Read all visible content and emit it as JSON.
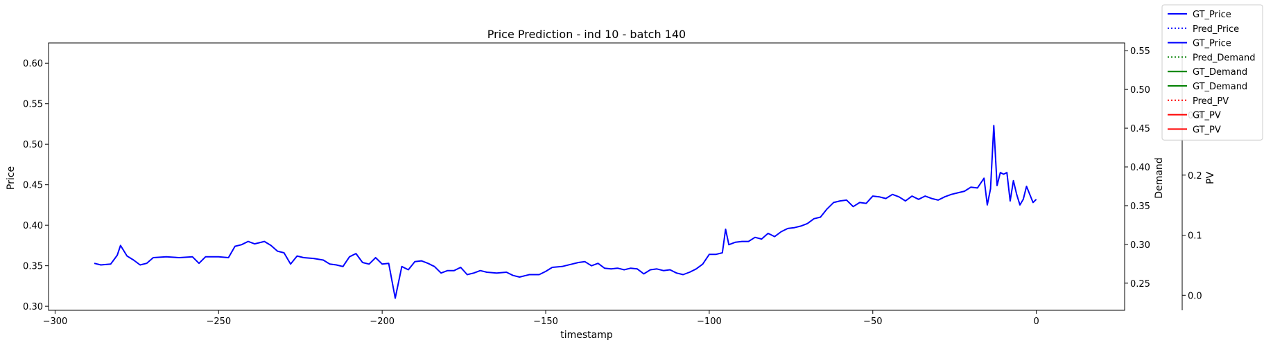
{
  "chart_data": {
    "type": "line",
    "title": "Price Prediction - ind 10 - batch 140",
    "xlabel": "timestamp",
    "xlim": [
      -302,
      27
    ],
    "xticks": [
      -300,
      -250,
      -200,
      -150,
      -100,
      -50,
      0
    ],
    "axes": {
      "price": {
        "label": "Price",
        "color": "#0000ff",
        "ylim": [
          0.295,
          0.625
        ],
        "ticks": [
          0.3,
          0.35,
          0.4,
          0.45,
          0.5,
          0.55,
          0.6
        ],
        "tick_labels": [
          "0.30",
          "0.35",
          "0.40",
          "0.45",
          "0.50",
          "0.55",
          "0.60"
        ]
      },
      "demand": {
        "label": "Demand",
        "color": "#008000",
        "ylim": [
          0.215,
          0.56
        ],
        "ticks": [
          0.25,
          0.3,
          0.35,
          0.4,
          0.45,
          0.5,
          0.55
        ],
        "tick_labels": [
          "0.25",
          "0.30",
          "0.35",
          "0.40",
          "0.45",
          "0.50",
          "0.55"
        ]
      },
      "pv": {
        "label": "PV",
        "color": "#ff0000",
        "ylim": [
          -0.025,
          0.42
        ],
        "ticks": [
          0.0,
          0.1,
          0.2,
          0.3
        ],
        "tick_labels": [
          "0.0",
          "0.1",
          "0.2",
          "0.3"
        ]
      }
    },
    "legend": {
      "placement": "top-right",
      "entries": [
        {
          "label": "GT_Price",
          "color": "#0000ff",
          "style": "solid"
        },
        {
          "label": "Pred_Price",
          "color": "#0000ff",
          "style": "dotted"
        },
        {
          "label": "GT_Price",
          "color": "#0000ff",
          "style": "solid"
        },
        {
          "label": "Pred_Demand",
          "color": "#008000",
          "style": "dotted"
        },
        {
          "label": "GT_Demand",
          "color": "#008000",
          "style": "solid"
        },
        {
          "label": "GT_Demand",
          "color": "#008000",
          "style": "solid"
        },
        {
          "label": "Pred_PV",
          "color": "#ff0000",
          "style": "dotted"
        },
        {
          "label": "GT_PV",
          "color": "#ff0000",
          "style": "solid"
        },
        {
          "label": "GT_PV",
          "color": "#ff0000",
          "style": "solid"
        }
      ]
    },
    "series": [
      {
        "name": "GT_Price",
        "axis": "price",
        "color": "#0000ff",
        "style": "solid",
        "points": [
          [
            -288,
            0.353
          ],
          [
            -286,
            0.351
          ],
          [
            -283,
            0.352
          ],
          [
            -281,
            0.363
          ],
          [
            -280,
            0.375
          ],
          [
            -278,
            0.362
          ],
          [
            -276,
            0.357
          ],
          [
            -274,
            0.351
          ],
          [
            -272,
            0.353
          ],
          [
            -270,
            0.36
          ],
          [
            -266,
            0.361
          ],
          [
            -262,
            0.36
          ],
          [
            -258,
            0.361
          ],
          [
            -256,
            0.353
          ],
          [
            -254,
            0.361
          ],
          [
            -250,
            0.361
          ],
          [
            -247,
            0.36
          ],
          [
            -245,
            0.374
          ],
          [
            -243,
            0.376
          ],
          [
            -241,
            0.38
          ],
          [
            -239,
            0.377
          ],
          [
            -236,
            0.38
          ],
          [
            -234,
            0.375
          ],
          [
            -232,
            0.368
          ],
          [
            -230,
            0.366
          ],
          [
            -228,
            0.352
          ],
          [
            -226,
            0.362
          ],
          [
            -224,
            0.36
          ],
          [
            -221,
            0.359
          ],
          [
            -218,
            0.357
          ],
          [
            -216,
            0.352
          ],
          [
            -214,
            0.351
          ],
          [
            -212,
            0.349
          ],
          [
            -210,
            0.361
          ],
          [
            -208,
            0.365
          ],
          [
            -206,
            0.354
          ],
          [
            -204,
            0.352
          ],
          [
            -202,
            0.36
          ],
          [
            -200,
            0.352
          ],
          [
            -198,
            0.353
          ],
          [
            -196,
            0.31
          ],
          [
            -194,
            0.349
          ],
          [
            -192,
            0.345
          ],
          [
            -190,
            0.355
          ],
          [
            -188,
            0.356
          ],
          [
            -186,
            0.353
          ],
          [
            -184,
            0.349
          ],
          [
            -182,
            0.341
          ],
          [
            -180,
            0.344
          ],
          [
            -178,
            0.344
          ],
          [
            -176,
            0.348
          ],
          [
            -174,
            0.339
          ],
          [
            -172,
            0.341
          ],
          [
            -170,
            0.344
          ],
          [
            -168,
            0.342
          ],
          [
            -165,
            0.341
          ],
          [
            -162,
            0.342
          ],
          [
            -160,
            0.338
          ],
          [
            -158,
            0.336
          ],
          [
            -155,
            0.339
          ],
          [
            -152,
            0.339
          ],
          [
            -150,
            0.343
          ],
          [
            -148,
            0.348
          ],
          [
            -145,
            0.349
          ],
          [
            -142,
            0.352
          ],
          [
            -140,
            0.354
          ],
          [
            -138,
            0.355
          ],
          [
            -136,
            0.35
          ],
          [
            -134,
            0.353
          ],
          [
            -132,
            0.347
          ],
          [
            -130,
            0.346
          ],
          [
            -128,
            0.347
          ],
          [
            -126,
            0.345
          ],
          [
            -124,
            0.347
          ],
          [
            -122,
            0.346
          ],
          [
            -120,
            0.34
          ],
          [
            -118,
            0.345
          ],
          [
            -116,
            0.346
          ],
          [
            -114,
            0.344
          ],
          [
            -112,
            0.345
          ],
          [
            -110,
            0.341
          ],
          [
            -108,
            0.339
          ],
          [
            -106,
            0.342
          ],
          [
            -104,
            0.346
          ],
          [
            -102,
            0.352
          ],
          [
            -100,
            0.364
          ],
          [
            -98,
            0.364
          ],
          [
            -96,
            0.366
          ],
          [
            -95,
            0.395
          ],
          [
            -94,
            0.376
          ],
          [
            -92,
            0.379
          ],
          [
            -90,
            0.38
          ],
          [
            -88,
            0.38
          ],
          [
            -86,
            0.385
          ],
          [
            -84,
            0.383
          ],
          [
            -82,
            0.39
          ],
          [
            -80,
            0.386
          ],
          [
            -78,
            0.392
          ],
          [
            -76,
            0.396
          ],
          [
            -74,
            0.397
          ],
          [
            -72,
            0.399
          ],
          [
            -70,
            0.402
          ],
          [
            -68,
            0.408
          ],
          [
            -66,
            0.41
          ],
          [
            -64,
            0.42
          ],
          [
            -62,
            0.428
          ],
          [
            -60,
            0.43
          ],
          [
            -58,
            0.431
          ],
          [
            -56,
            0.423
          ],
          [
            -54,
            0.428
          ],
          [
            -52,
            0.427
          ],
          [
            -50,
            0.436
          ],
          [
            -48,
            0.435
          ],
          [
            -46,
            0.433
          ],
          [
            -44,
            0.438
          ],
          [
            -42,
            0.435
          ],
          [
            -40,
            0.43
          ],
          [
            -38,
            0.436
          ],
          [
            -36,
            0.432
          ],
          [
            -34,
            0.436
          ],
          [
            -32,
            0.433
          ],
          [
            -30,
            0.431
          ],
          [
            -28,
            0.435
          ],
          [
            -26,
            0.438
          ],
          [
            -24,
            0.44
          ],
          [
            -22,
            0.442
          ],
          [
            -20,
            0.447
          ],
          [
            -18,
            0.446
          ],
          [
            -16,
            0.458
          ],
          [
            -15,
            0.425
          ],
          [
            -14,
            0.445
          ],
          [
            -13,
            0.523
          ],
          [
            -12,
            0.449
          ],
          [
            -11,
            0.465
          ],
          [
            -10,
            0.463
          ],
          [
            -9,
            0.465
          ],
          [
            -8,
            0.43
          ],
          [
            -7,
            0.455
          ],
          [
            -6,
            0.438
          ],
          [
            -5,
            0.425
          ],
          [
            -4,
            0.432
          ],
          [
            -3,
            0.448
          ],
          [
            -2,
            0.438
          ],
          [
            -1,
            0.428
          ],
          [
            0,
            0.432
          ]
        ]
      },
      {
        "name": "GT_Price",
        "axis": "price",
        "color": "#0000ff",
        "style": "solid",
        "points": [
          [
            0,
            0.432
          ]
        ]
      }
    ]
  }
}
